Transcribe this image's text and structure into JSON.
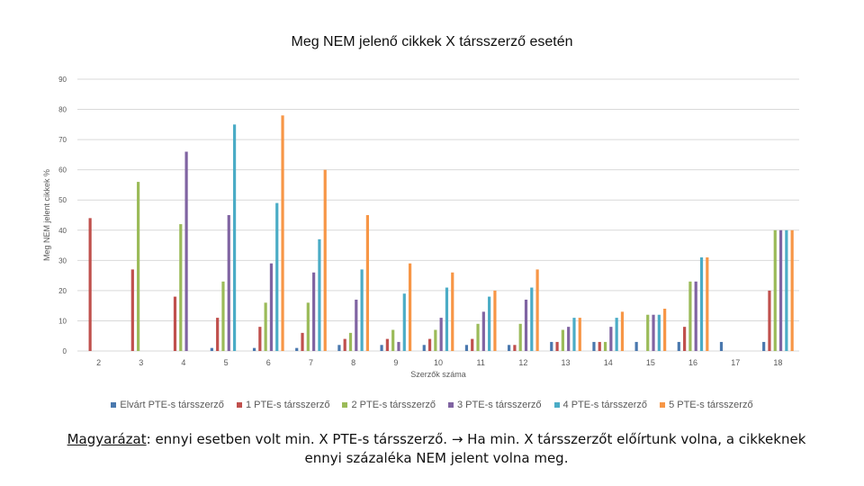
{
  "colors": {
    "series": [
      "#4a78ae",
      "#c0504d",
      "#9bbb59",
      "#8064a2",
      "#4bacc6",
      "#f79646"
    ],
    "grid": "#d9d9d9",
    "axis_text": "#595959"
  },
  "chart_data": {
    "type": "bar",
    "title": "Meg NEM jelenő cikkek X társszerző esetén",
    "xlabel": "Szerzők száma",
    "ylabel": "Meg NEM jelent cikkek %",
    "ylim": [
      0,
      90
    ],
    "yticks": [
      0,
      10,
      20,
      30,
      40,
      50,
      60,
      70,
      80,
      90
    ],
    "grid": true,
    "legend_position": "bottom",
    "categories": [
      "2",
      "3",
      "4",
      "5",
      "6",
      "7",
      "8",
      "9",
      "10",
      "11",
      "12",
      "13",
      "14",
      "15",
      "16",
      "17",
      "18"
    ],
    "series": [
      {
        "name": "Elvárt PTE-s társszerző",
        "values": [
          null,
          null,
          null,
          1,
          1,
          1,
          2,
          2,
          2,
          2,
          2,
          3,
          3,
          3,
          3,
          3,
          3
        ]
      },
      {
        "name": "1 PTE-s társszerző",
        "values": [
          44,
          27,
          18,
          11,
          8,
          6,
          4,
          4,
          4,
          4,
          2,
          3,
          3,
          null,
          8,
          null,
          20
        ]
      },
      {
        "name": "2 PTE-s társszerző",
        "values": [
          null,
          56,
          42,
          23,
          16,
          16,
          6,
          7,
          7,
          9,
          9,
          7,
          3,
          12,
          23,
          null,
          40
        ]
      },
      {
        "name": "3 PTE-s társszerző",
        "values": [
          null,
          null,
          66,
          45,
          29,
          26,
          17,
          3,
          11,
          13,
          17,
          8,
          8,
          12,
          23,
          null,
          40
        ]
      },
      {
        "name": "4 PTE-s társszerző",
        "values": [
          null,
          null,
          null,
          75,
          49,
          37,
          27,
          19,
          21,
          18,
          21,
          11,
          11,
          12,
          31,
          null,
          40
        ]
      },
      {
        "name": "5 PTE-s társszerző",
        "values": [
          null,
          null,
          null,
          null,
          78,
          60,
          45,
          29,
          26,
          20,
          27,
          11,
          13,
          14,
          31,
          null,
          40
        ]
      }
    ]
  },
  "caption": {
    "label": "Magyarázat",
    "text1": ": ennyi esetben volt min. X PTE-s társszerző. ",
    "arrow": "→",
    "text2": " Ha min. X társszerzőt előírtunk volna, a cikkeknek ennyi százaléka NEM jelent volna meg."
  }
}
